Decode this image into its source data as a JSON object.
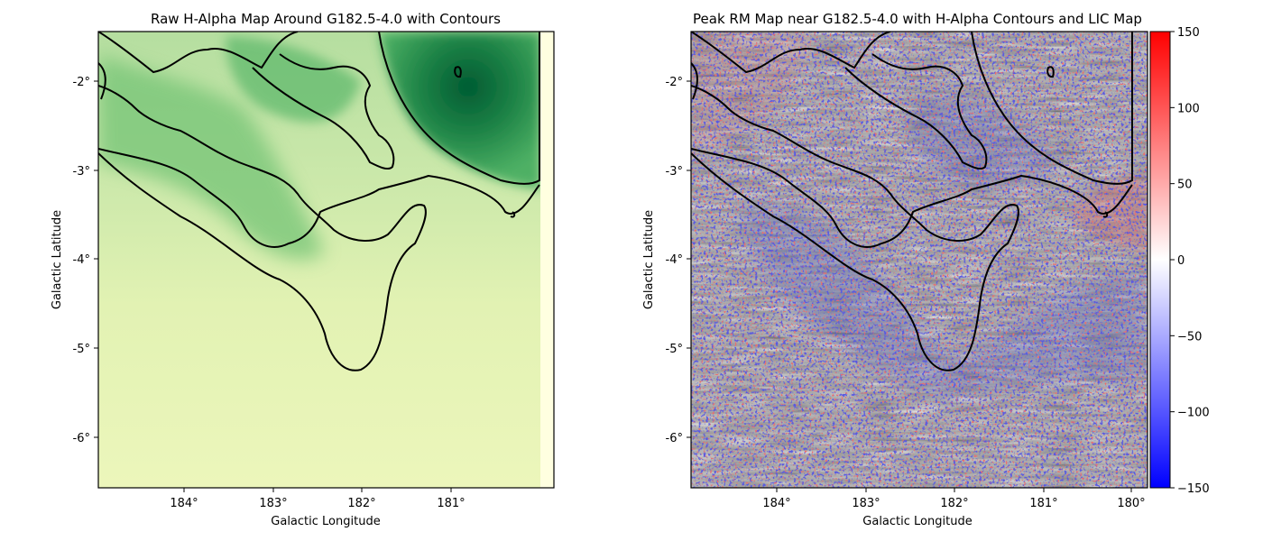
{
  "chart_data": [
    {
      "type": "heatmap",
      "title": "Raw H-Alpha Map Around G182.5-4.0 with Contours",
      "xlabel": "Galactic Longitude",
      "ylabel": "Galactic Latitude",
      "xlim": [
        184.95,
        179.87
      ],
      "ylim": [
        -6.57,
        -1.45
      ],
      "xticks": [
        {
          "value": 184,
          "label": "184°"
        },
        {
          "value": 183,
          "label": "183°"
        },
        {
          "value": 182,
          "label": "182°"
        },
        {
          "value": 181,
          "label": "181°"
        }
      ],
      "yticks": [
        {
          "value": -2,
          "label": "-2°"
        },
        {
          "value": -3,
          "label": "-3°"
        },
        {
          "value": -4,
          "label": "-4°"
        },
        {
          "value": -5,
          "label": "-5°"
        },
        {
          "value": -6,
          "label": "-6°"
        }
      ],
      "colormap": "YlGn",
      "contours": "H-Alpha intensity contours (black)"
    },
    {
      "type": "heatmap",
      "title": "Peak RM Map near G182.5-4.0 with H-Alpha Contours and LIC Map",
      "xlabel": "Galactic Longitude",
      "ylabel": "Galactic Latitude",
      "xlim": [
        184.95,
        179.87
      ],
      "ylim": [
        -6.57,
        -1.45
      ],
      "xticks": [
        {
          "value": 184,
          "label": "184°"
        },
        {
          "value": 183,
          "label": "183°"
        },
        {
          "value": 182,
          "label": "182°"
        },
        {
          "value": 181,
          "label": "181°"
        },
        {
          "value": 180,
          "label": "180°"
        }
      ],
      "yticks": [
        {
          "value": -2,
          "label": "-2°"
        },
        {
          "value": -3,
          "label": "-3°"
        },
        {
          "value": -4,
          "label": "-4°"
        },
        {
          "value": -5,
          "label": "-5°"
        },
        {
          "value": -6,
          "label": "-6°"
        }
      ],
      "colormap": "bwr",
      "colorbar": {
        "range": [
          -150,
          150
        ],
        "ticks": [
          {
            "value": 150,
            "label": "150"
          },
          {
            "value": 100,
            "label": "100"
          },
          {
            "value": 50,
            "label": "50"
          },
          {
            "value": 0,
            "label": "0"
          },
          {
            "value": -50,
            "label": "−50"
          },
          {
            "value": -100,
            "label": "−100"
          },
          {
            "value": -150,
            "label": "−150"
          }
        ]
      },
      "contours": "H-Alpha intensity contours (black)"
    }
  ]
}
